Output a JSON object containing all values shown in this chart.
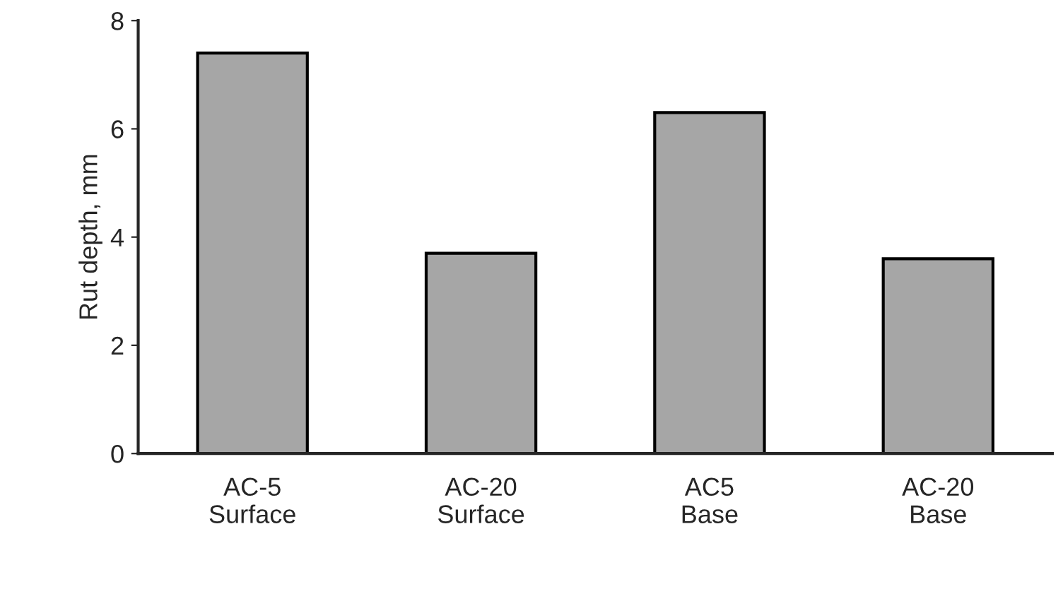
{
  "chart_data": {
    "type": "bar",
    "ylabel": "Rut depth, mm",
    "categories": [
      "AC-5\nSurface",
      "AC-20\nSurface",
      "AC5\nBase",
      "AC-20\nBase"
    ],
    "values": [
      7.4,
      3.7,
      6.3,
      3.6
    ],
    "color": "#a6a6a6",
    "ylim": [
      0,
      8
    ],
    "yticks": [
      0,
      2,
      4,
      6,
      8
    ],
    "grid": false,
    "legend": false
  }
}
